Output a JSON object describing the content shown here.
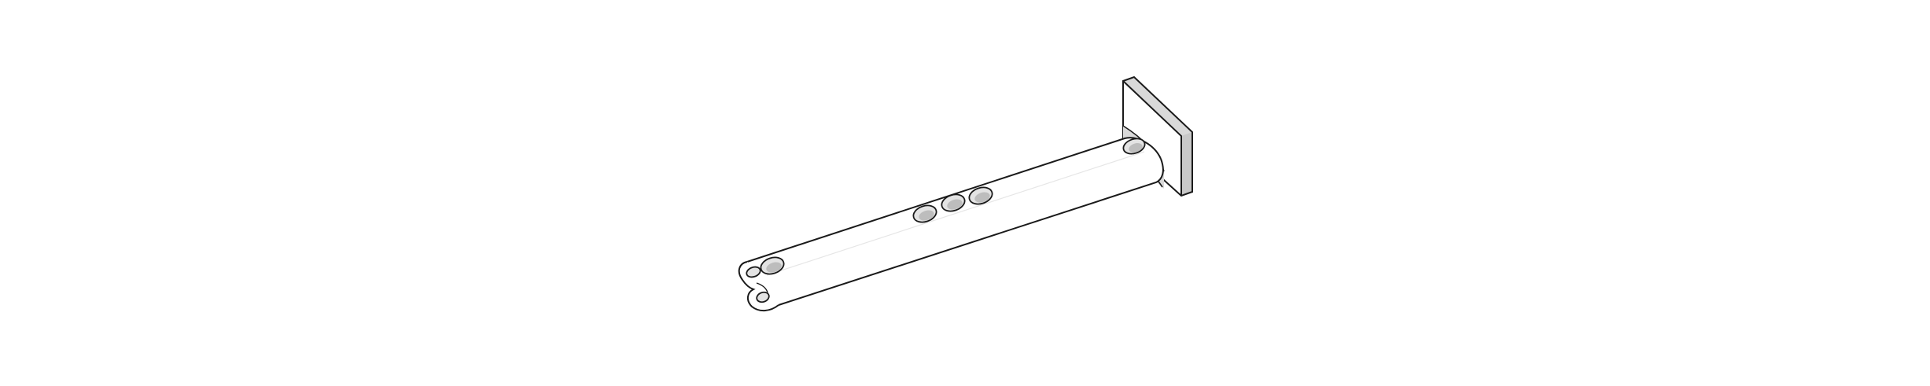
{
  "colors": {
    "background": "#ffffff",
    "outline": "#1a1a1a",
    "body_fill": "#ffffff",
    "plate_face": "#ffffff",
    "plate_side": "#d9d9d9",
    "plate_edge": "#c8c8c8",
    "hole_fill": "#e3e3e3",
    "hole_inner": "#bdbdbd"
  },
  "drawing": {
    "subject": "mounting-bracket-rod",
    "hole_count": 5,
    "end_fitting_holes": 2
  }
}
